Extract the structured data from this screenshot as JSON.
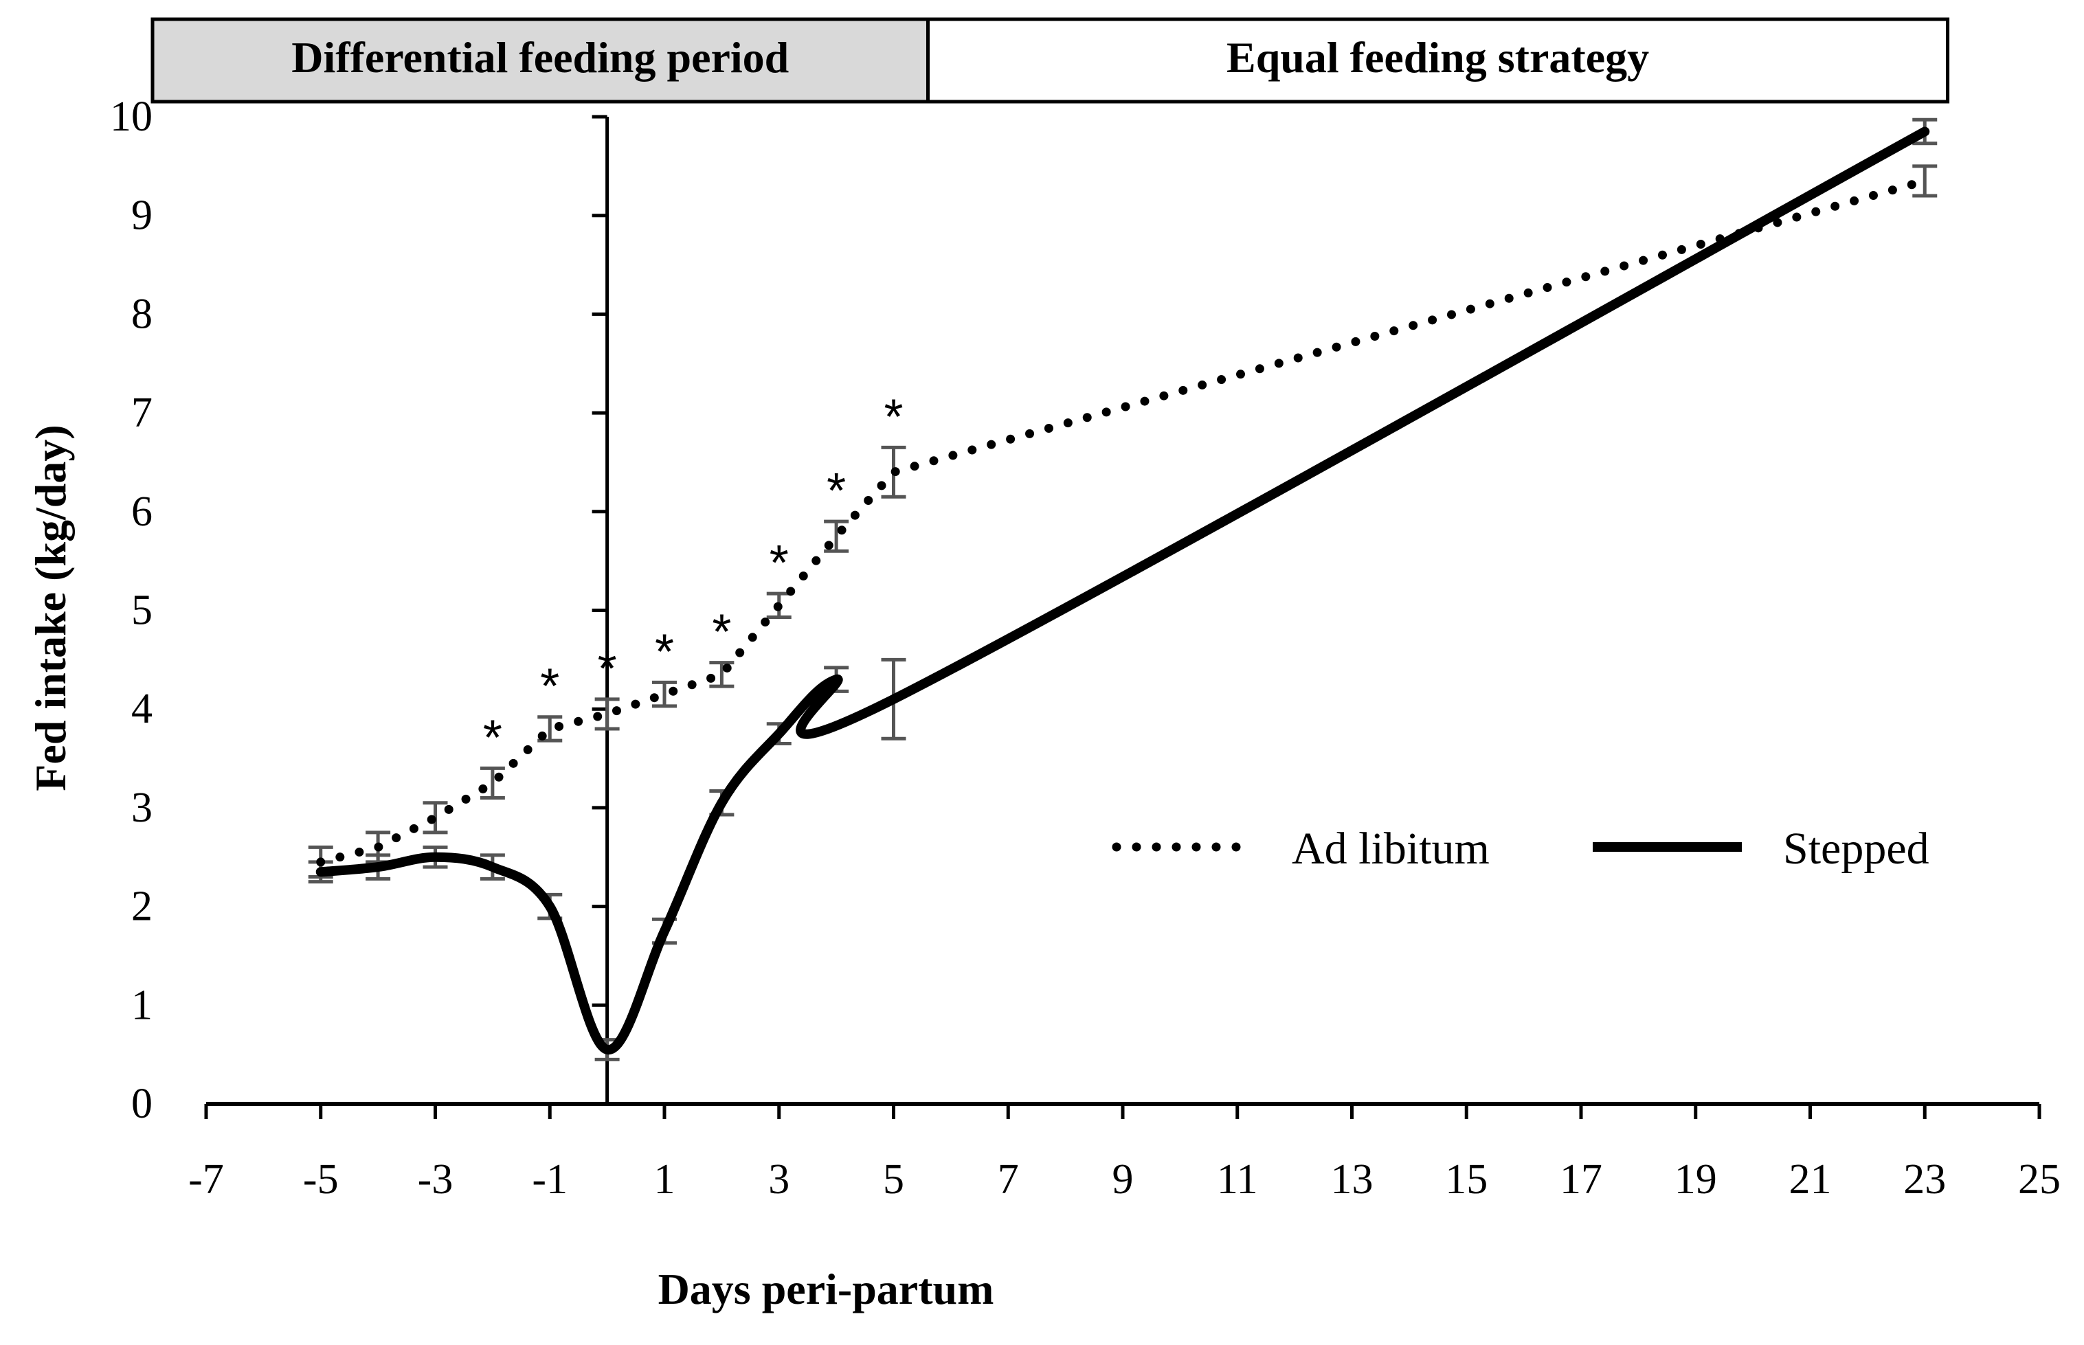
{
  "chart_data": {
    "type": "line",
    "title": "",
    "xlabel": "Days peri-partum",
    "ylabel": "Fed intake (kg/day)",
    "xlim": [
      -7,
      25
    ],
    "ylim": [
      0,
      10
    ],
    "x_ticks": [
      "-7",
      "-5",
      "-3",
      "-1",
      "1",
      "3",
      "5",
      "7",
      "9",
      "11",
      "13",
      "15",
      "17",
      "19",
      "21",
      "23",
      "25"
    ],
    "y_ticks": [
      "0",
      "1",
      "2",
      "3",
      "4",
      "5",
      "6",
      "7",
      "8",
      "9",
      "10"
    ],
    "periods": [
      {
        "label": "Differential feeding period",
        "x_range": [
          -9,
          5.6
        ],
        "color": "#d9d9d9"
      },
      {
        "label": "Equal feeding strategy",
        "x_range": [
          5.6,
          23.4
        ],
        "color": "#ffffff"
      }
    ],
    "parturition_x": 0,
    "series": [
      {
        "name": "Ad libitum",
        "style": "dotted",
        "x": [
          -5,
          -4,
          -3,
          -2,
          -1,
          0,
          1,
          2,
          3,
          4,
          5,
          23
        ],
        "values": [
          2.45,
          2.6,
          2.9,
          3.25,
          3.8,
          3.95,
          4.15,
          4.35,
          5.05,
          5.75,
          6.4,
          9.35
        ],
        "errors": [
          0.15,
          0.15,
          0.15,
          0.15,
          0.12,
          0.15,
          0.12,
          0.12,
          0.12,
          0.15,
          0.25,
          0.15
        ]
      },
      {
        "name": "Stepped",
        "style": "solid",
        "x": [
          -5,
          -4,
          -3,
          -2,
          -1,
          0,
          1,
          2,
          3,
          4,
          5,
          23
        ],
        "values": [
          2.35,
          2.4,
          2.5,
          2.4,
          2.0,
          0.55,
          1.75,
          3.05,
          3.75,
          4.3,
          4.1,
          9.85
        ],
        "errors": [
          0.1,
          0.12,
          0.1,
          0.12,
          0.12,
          0.1,
          0.12,
          0.12,
          0.1,
          0.12,
          0.4,
          0.12
        ]
      }
    ],
    "significance": {
      "symbol": "*",
      "x": [
        -2,
        -1,
        0,
        1,
        2,
        3,
        4,
        5
      ]
    },
    "legend": {
      "position": "right",
      "entries": [
        "Ad libitum",
        "Stepped"
      ]
    }
  }
}
